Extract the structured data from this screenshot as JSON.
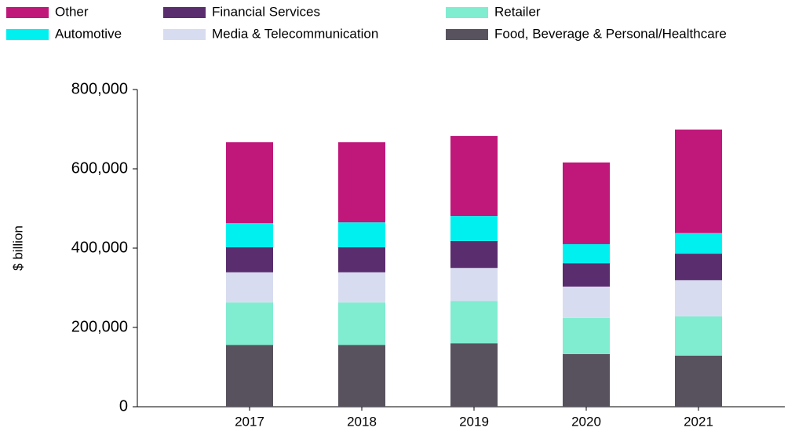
{
  "chart_data": {
    "type": "stacked_bar",
    "y_label": "$ billion",
    "categories": [
      "2017",
      "2018",
      "2019",
      "2020",
      "2021"
    ],
    "series": [
      {
        "name": "Food, Beverage & Personal/Healthcare",
        "color": "#58525e",
        "values": [
          156000,
          156000,
          160000,
          133000,
          129000
        ]
      },
      {
        "name": "Retailer",
        "color": "#80ecd0",
        "values": [
          107000,
          107000,
          107000,
          91000,
          99000
        ]
      },
      {
        "name": "Media & Telecommunication",
        "color": "#d8dcf0",
        "values": [
          76000,
          76000,
          83000,
          79000,
          91000
        ]
      },
      {
        "name": "Financial Services",
        "color": "#5a2d6e",
        "values": [
          63000,
          63000,
          68000,
          59000,
          67000
        ]
      },
      {
        "name": "Automotive",
        "color": "#00f0f0",
        "values": [
          61000,
          63000,
          63000,
          48000,
          52000
        ]
      },
      {
        "name": "Other",
        "color": "#c0177a",
        "values": [
          204000,
          202000,
          202000,
          206000,
          261000
        ]
      }
    ],
    "ylim": [
      0,
      800000
    ],
    "yticks": [
      0,
      {
        "value": 200000,
        "label": "200,000"
      },
      {
        "value": 400000,
        "label": "400,000"
      },
      {
        "value": 600000,
        "label": "600,000"
      },
      {
        "value": 800000,
        "label": "800,000"
      }
    ]
  }
}
